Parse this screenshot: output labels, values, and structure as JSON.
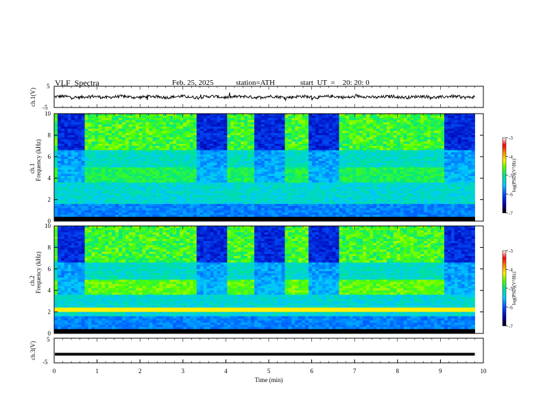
{
  "header": {
    "title": "VLF  Spectra",
    "date": "Feb. 25, 2025",
    "station": "station=ATH",
    "start": "start  UT  =    20: 20: 0"
  },
  "chart_data": [
    {
      "type": "line",
      "id": "ch1-waveform",
      "ylabel": "ch.1(V)",
      "ylim": [
        -5,
        5
      ],
      "yticks": [
        "5",
        "-5"
      ],
      "xlim": [
        0,
        10
      ],
      "description": "noisy waveform centred near 0 V with small spikes"
    },
    {
      "type": "heatmap",
      "id": "ch1-spectrogram",
      "ylabel_line1": "ch.1",
      "ylabel_line2": "Frequency  (kHz)",
      "ylim": [
        0,
        10
      ],
      "yticks": [
        "0",
        "2",
        "4",
        "6",
        "8",
        "10"
      ],
      "xlim": [
        0,
        10
      ],
      "colorbar": {
        "label": "log(PSD)(V²/Hz)",
        "range": [
          -7,
          -3
        ],
        "ticks": [
          "-3",
          "-4",
          "-5",
          "-6",
          "-7"
        ]
      },
      "dark_intervals_min": [
        [
          0.05,
          0.7
        ],
        [
          3.3,
          4.05
        ],
        [
          4.7,
          5.35
        ],
        [
          5.9,
          6.6
        ],
        [
          9.1,
          9.8
        ]
      ]
    },
    {
      "type": "heatmap",
      "id": "ch2-spectrogram",
      "ylabel_line1": "ch.2",
      "ylabel_line2": "Frequency  (kHz)",
      "ylim": [
        0,
        10
      ],
      "yticks": [
        "0",
        "2",
        "4",
        "6",
        "8",
        "10"
      ],
      "xlim": [
        0,
        10
      ],
      "colorbar": {
        "label": "log(PSD)(V²/Hz)",
        "range": [
          -7,
          -3
        ],
        "ticks": [
          "-3",
          "-4",
          "-5",
          "-6",
          "-7"
        ]
      },
      "dark_intervals_min": [
        [
          0.05,
          0.7
        ],
        [
          3.3,
          4.05
        ],
        [
          4.7,
          5.35
        ],
        [
          5.9,
          6.6
        ],
        [
          9.1,
          9.8
        ]
      ]
    },
    {
      "type": "line",
      "id": "ch3-waveform",
      "ylabel": "ch.3(V)",
      "ylim": [
        -5,
        5
      ],
      "yticks": [
        "5",
        "-5"
      ],
      "xlim": [
        0,
        10
      ],
      "value_level": -1.5,
      "xlabel": "Time  (min)",
      "xticks": [
        "0",
        "1",
        "2",
        "3",
        "4",
        "5",
        "6",
        "7",
        "8",
        "9",
        "10"
      ]
    }
  ]
}
